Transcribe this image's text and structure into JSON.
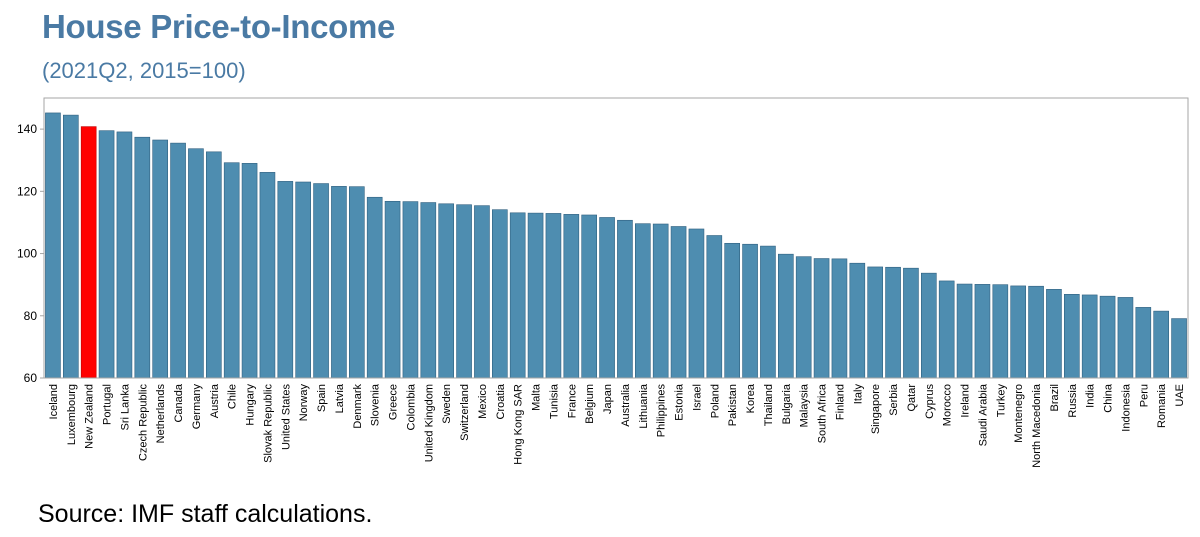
{
  "title": "House Price-to-Income",
  "subtitle": "(2021Q2, 2015=100)",
  "source": "Source: IMF staff calculations.",
  "colors": {
    "bar": "#4e8db0",
    "highlight": "#ff0000",
    "bar_edge": "#2f5f7f",
    "title": "#4a7aa4"
  },
  "chart_data": {
    "type": "bar",
    "ylim": [
      60,
      150
    ],
    "yticks": [
      60,
      80,
      100,
      120,
      140
    ],
    "grid": false,
    "highlight": "New Zealand",
    "categories": [
      "Iceland",
      "Luxembourg",
      "New Zealand",
      "Portugal",
      "Sri Lanka",
      "Czech Republic",
      "Netherlands",
      "Canada",
      "Germany",
      "Austria",
      "Chile",
      "Hungary",
      "Slovak Republic",
      "United States",
      "Norway",
      "Spain",
      "Latvia",
      "Denmark",
      "Slovenia",
      "Greece",
      "Colombia",
      "United Kingdom",
      "Sweden",
      "Switzerland",
      "Mexico",
      "Croatia",
      "Hong Kong SAR",
      "Malta",
      "Tunisia",
      "France",
      "Belgium",
      "Japan",
      "Australia",
      "Lithuania",
      "Philippines",
      "Estonia",
      "Israel",
      "Poland",
      "Pakistan",
      "Korea",
      "Thailand",
      "Bulgaria",
      "Malaysia",
      "South Africa",
      "Finland",
      "Italy",
      "Singapore",
      "Serbia",
      "Qatar",
      "Cyprus",
      "Morocco",
      "Ireland",
      "Saudi Arabia",
      "Turkey",
      "Montenegro",
      "North Macedonia",
      "Brazil",
      "Russia",
      "India",
      "China",
      "Indonesia",
      "Peru",
      "Romania",
      "UAE"
    ],
    "values": [
      145.2,
      144.5,
      140.8,
      139.5,
      139.1,
      137.4,
      136.5,
      135.5,
      133.7,
      132.7,
      129.2,
      129.0,
      126.1,
      123.2,
      123.0,
      122.5,
      121.6,
      121.5,
      118.1,
      116.8,
      116.7,
      116.4,
      116.0,
      115.7,
      115.4,
      114.1,
      113.1,
      113.0,
      112.9,
      112.6,
      112.4,
      111.6,
      110.7,
      109.6,
      109.5,
      108.7,
      107.9,
      105.8,
      103.3,
      103.0,
      102.4,
      99.8,
      99.0,
      98.4,
      98.3,
      96.9,
      95.7,
      95.6,
      95.3,
      93.7,
      91.2,
      90.2,
      90.1,
      90.0,
      89.6,
      89.5,
      88.5,
      86.9,
      86.7,
      86.3,
      85.9,
      82.7,
      81.5,
      79.1
    ]
  }
}
